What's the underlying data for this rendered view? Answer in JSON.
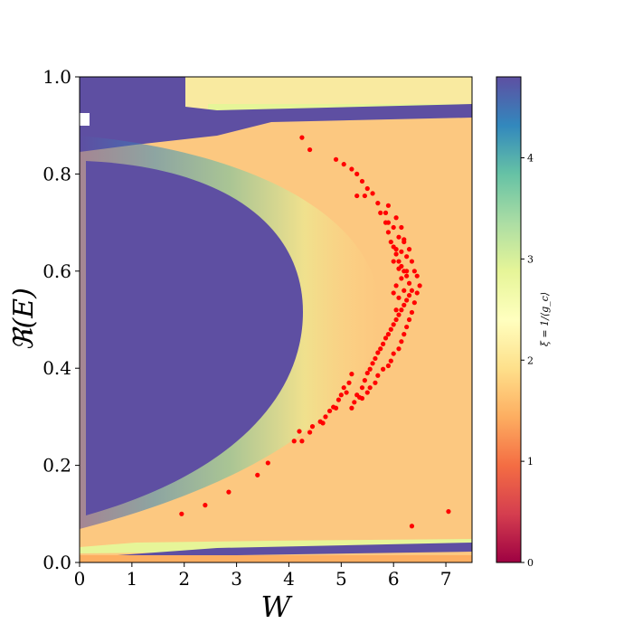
{
  "chart_data": {
    "type": "heatmap",
    "xlabel": "W",
    "ylabel": "ℜ(E)",
    "xlim": [
      0,
      7.5
    ],
    "ylim": [
      0,
      1.0
    ],
    "x_ticks": [
      "0",
      "1",
      "2",
      "3",
      "4",
      "5",
      "6",
      "7"
    ],
    "y_ticks": [
      "0.0",
      "0.2",
      "0.4",
      "0.6",
      "0.8",
      "1.0"
    ],
    "colorbar": {
      "label": "ξ = 1/⟨g_c⟩",
      "range": [
        0,
        4.8
      ],
      "ticks": [
        "0",
        "1",
        "2",
        "3",
        "4"
      ],
      "colormap": "Spectral"
    },
    "overlay_points": {
      "type": "scatter",
      "color": "#ff0000",
      "points": [
        [
          1.95,
          0.1
        ],
        [
          2.4,
          0.118
        ],
        [
          2.85,
          0.145
        ],
        [
          3.4,
          0.18
        ],
        [
          3.6,
          0.205
        ],
        [
          4.1,
          0.25
        ],
        [
          4.2,
          0.27
        ],
        [
          4.25,
          0.25
        ],
        [
          4.4,
          0.268
        ],
        [
          4.45,
          0.28
        ],
        [
          4.6,
          0.29
        ],
        [
          4.65,
          0.287
        ],
        [
          4.7,
          0.3
        ],
        [
          4.78,
          0.312
        ],
        [
          4.85,
          0.32
        ],
        [
          4.9,
          0.318
        ],
        [
          4.95,
          0.335
        ],
        [
          5.0,
          0.345
        ],
        [
          5.05,
          0.36
        ],
        [
          5.1,
          0.35
        ],
        [
          5.15,
          0.37
        ],
        [
          5.2,
          0.388
        ],
        [
          5.3,
          0.345
        ],
        [
          5.35,
          0.34
        ],
        [
          5.4,
          0.36
        ],
        [
          5.45,
          0.375
        ],
        [
          5.5,
          0.39
        ],
        [
          5.55,
          0.398
        ],
        [
          5.6,
          0.41
        ],
        [
          5.65,
          0.42
        ],
        [
          5.7,
          0.432
        ],
        [
          5.75,
          0.44
        ],
        [
          5.8,
          0.45
        ],
        [
          5.85,
          0.462
        ],
        [
          5.9,
          0.47
        ],
        [
          5.95,
          0.48
        ],
        [
          6.0,
          0.49
        ],
        [
          6.05,
          0.5
        ],
        [
          6.1,
          0.51
        ],
        [
          6.15,
          0.52
        ],
        [
          6.2,
          0.53
        ],
        [
          6.25,
          0.54
        ],
        [
          6.3,
          0.55
        ],
        [
          6.35,
          0.56
        ],
        [
          6.3,
          0.575
        ],
        [
          6.25,
          0.59
        ],
        [
          6.2,
          0.6
        ],
        [
          6.15,
          0.61
        ],
        [
          6.1,
          0.62
        ],
        [
          6.05,
          0.635
        ],
        [
          6.0,
          0.65
        ],
        [
          5.95,
          0.66
        ],
        [
          5.9,
          0.68
        ],
        [
          5.85,
          0.7
        ],
        [
          5.75,
          0.72
        ],
        [
          5.7,
          0.74
        ],
        [
          5.6,
          0.76
        ],
        [
          5.5,
          0.77
        ],
        [
          5.4,
          0.785
        ],
        [
          5.3,
          0.8
        ],
        [
          5.2,
          0.81
        ],
        [
          5.05,
          0.82
        ],
        [
          4.9,
          0.83
        ],
        [
          4.4,
          0.85
        ],
        [
          4.25,
          0.875
        ],
        [
          5.3,
          0.755
        ],
        [
          5.45,
          0.755
        ],
        [
          5.9,
          0.735
        ],
        [
          6.05,
          0.71
        ],
        [
          6.15,
          0.69
        ],
        [
          6.2,
          0.665
        ],
        [
          6.3,
          0.645
        ],
        [
          6.35,
          0.62
        ],
        [
          6.4,
          0.6
        ],
        [
          6.45,
          0.59
        ],
        [
          6.5,
          0.57
        ],
        [
          6.45,
          0.555
        ],
        [
          6.4,
          0.535
        ],
        [
          6.35,
          0.515
        ],
        [
          6.3,
          0.5
        ],
        [
          6.25,
          0.485
        ],
        [
          6.2,
          0.47
        ],
        [
          6.15,
          0.455
        ],
        [
          6.1,
          0.44
        ],
        [
          6.0,
          0.43
        ],
        [
          5.95,
          0.415
        ],
        [
          5.9,
          0.405
        ],
        [
          5.8,
          0.398
        ],
        [
          5.7,
          0.385
        ],
        [
          5.65,
          0.37
        ],
        [
          5.55,
          0.36
        ],
        [
          5.5,
          0.35
        ],
        [
          5.4,
          0.338
        ],
        [
          5.25,
          0.33
        ],
        [
          5.2,
          0.318
        ],
        [
          6.05,
          0.52
        ],
        [
          6.1,
          0.545
        ],
        [
          6.0,
          0.555
        ],
        [
          6.05,
          0.57
        ],
        [
          6.15,
          0.585
        ],
        [
          6.2,
          0.56
        ],
        [
          6.25,
          0.6
        ],
        [
          6.1,
          0.605
        ],
        [
          6.0,
          0.62
        ],
        [
          6.05,
          0.645
        ],
        [
          6.15,
          0.64
        ],
        [
          6.2,
          0.66
        ],
        [
          6.25,
          0.63
        ],
        [
          6.1,
          0.67
        ],
        [
          6.0,
          0.69
        ],
        [
          5.9,
          0.7
        ],
        [
          5.85,
          0.72
        ],
        [
          6.35,
          0.075
        ],
        [
          7.05,
          0.105
        ]
      ]
    }
  }
}
